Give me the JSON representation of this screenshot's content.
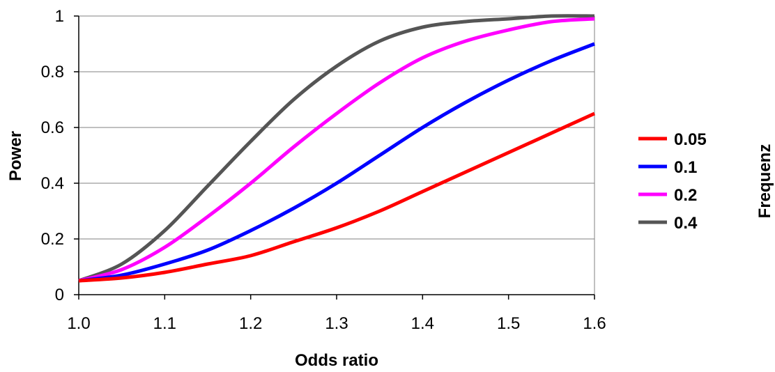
{
  "chart_data": {
    "type": "line",
    "xlabel": "Odds ratio",
    "ylabel": "Power",
    "legend_title": "Frequenz",
    "legend_position": "right",
    "grid": "horizontal",
    "xlim": [
      1.0,
      1.6
    ],
    "ylim": [
      0,
      1
    ],
    "x_ticks": [
      "1.0",
      "1.1",
      "1.2",
      "1.3",
      "1.4",
      "1.5",
      "1.6"
    ],
    "y_ticks": [
      "0",
      "0.2",
      "0.4",
      "0.6",
      "0.8",
      "1"
    ],
    "x": [
      1.0,
      1.05,
      1.1,
      1.15,
      1.2,
      1.25,
      1.3,
      1.35,
      1.4,
      1.45,
      1.5,
      1.55,
      1.6
    ],
    "series": [
      {
        "name": "0.05",
        "color": "#ff0000",
        "values": [
          0.05,
          0.06,
          0.08,
          0.11,
          0.14,
          0.19,
          0.24,
          0.3,
          0.37,
          0.44,
          0.51,
          0.58,
          0.65
        ]
      },
      {
        "name": "0.1",
        "color": "#0000ff",
        "values": [
          0.05,
          0.07,
          0.11,
          0.16,
          0.23,
          0.31,
          0.4,
          0.5,
          0.6,
          0.69,
          0.77,
          0.84,
          0.9
        ]
      },
      {
        "name": "0.2",
        "color": "#ff00ff",
        "values": [
          0.05,
          0.09,
          0.17,
          0.28,
          0.4,
          0.53,
          0.65,
          0.76,
          0.85,
          0.91,
          0.95,
          0.98,
          0.99
        ]
      },
      {
        "name": "0.4",
        "color": "#555555",
        "values": [
          0.05,
          0.11,
          0.23,
          0.39,
          0.55,
          0.7,
          0.82,
          0.91,
          0.96,
          0.98,
          0.99,
          1.0,
          1.0
        ]
      }
    ]
  }
}
